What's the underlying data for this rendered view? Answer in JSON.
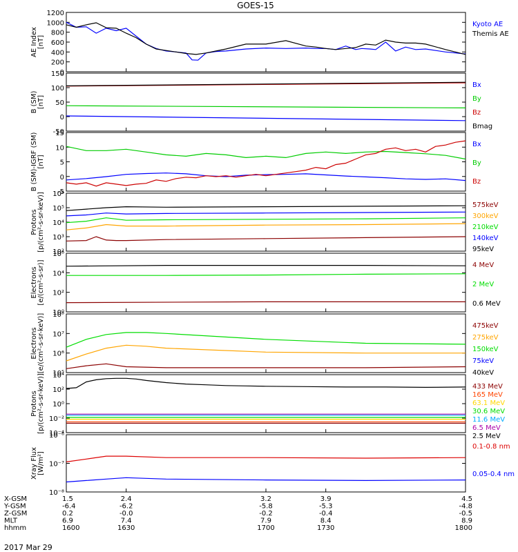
{
  "title": "GOES-15",
  "date_label": "2017 Mar 29",
  "chart_data": [
    {
      "id": "ae",
      "type": "line",
      "ylabel": [
        "AE Index",
        "[nT]"
      ],
      "scale": "linear",
      "ylim": [
        0,
        1200
      ],
      "yticks": [
        "0",
        "200",
        "400",
        "600",
        "800",
        "1000",
        "1200"
      ],
      "series": [
        {
          "name": "Kyoto AE",
          "color": "#0000ff",
          "x": [
            1600,
            1605,
            1610,
            1615,
            1620,
            1625,
            1630,
            1635,
            1640,
            1645,
            1650,
            1655,
            1660,
            1663,
            1666,
            1670,
            1675,
            1680,
            1690,
            1700,
            1710,
            1720,
            1725,
            1730,
            1735,
            1740,
            1745,
            1748,
            1752,
            1755,
            1760,
            1765,
            1770,
            1775,
            1780,
            1790,
            1800
          ],
          "y": [
            1000,
            900,
            910,
            780,
            880,
            830,
            880,
            720,
            560,
            470,
            420,
            400,
            380,
            240,
            235,
            380,
            410,
            420,
            460,
            480,
            470,
            480,
            470,
            470,
            450,
            520,
            450,
            470,
            460,
            450,
            600,
            420,
            500,
            450,
            460,
            400,
            360
          ]
        },
        {
          "name": "Themis AE",
          "color": "#000000",
          "x": [
            1600,
            1605,
            1610,
            1615,
            1620,
            1625,
            1630,
            1635,
            1640,
            1645,
            1650,
            1655,
            1660,
            1665,
            1670,
            1675,
            1680,
            1690,
            1700,
            1710,
            1720,
            1725,
            1730,
            1735,
            1740,
            1745,
            1750,
            1755,
            1760,
            1765,
            1770,
            1775,
            1780,
            1790,
            1800
          ],
          "y": [
            950,
            900,
            950,
            990,
            890,
            880,
            780,
            690,
            560,
            460,
            430,
            400,
            370,
            350,
            380,
            420,
            460,
            560,
            560,
            630,
            520,
            500,
            470,
            450,
            470,
            490,
            560,
            540,
            640,
            600,
            580,
            580,
            560,
            450,
            350
          ]
        }
      ]
    },
    {
      "id": "bsm",
      "type": "line",
      "ylabel": [
        "B (SM)",
        "[nT]"
      ],
      "scale": "linear",
      "ylim": [
        -60,
        150
      ],
      "yticks": [
        "-50",
        "0",
        "50",
        "100",
        "150"
      ],
      "series": [
        {
          "name": "Bx",
          "color": "#0000ff",
          "x": [
            1600,
            1800
          ],
          "y": [
            -5,
            -22
          ]
        },
        {
          "name": "By",
          "color": "#00cc00",
          "x": [
            1600,
            1800
          ],
          "y": [
            32,
            24
          ]
        },
        {
          "name": "Bz",
          "color": "#cc0000",
          "x": [
            1600,
            1800
          ],
          "y": [
            103,
            115
          ]
        },
        {
          "name": "Bmag",
          "color": "#000000",
          "x": [
            1600,
            1800
          ],
          "y": [
            104,
            117
          ]
        }
      ]
    },
    {
      "id": "bdiff",
      "type": "line",
      "ylabel": [
        "B (SM)-IGRF (SM)",
        "[nT]"
      ],
      "scale": "linear",
      "ylim": [
        -6,
        15
      ],
      "yticks": [
        "-5",
        "0",
        "5",
        "10",
        "15"
      ],
      "series": [
        {
          "name": "Bx",
          "color": "#0000ff",
          "x": [
            1600,
            1610,
            1620,
            1630,
            1640,
            1650,
            1660,
            1670,
            1680,
            1690,
            1700,
            1710,
            1720,
            1730,
            1740,
            1750,
            1760,
            1770,
            1780,
            1790,
            1800
          ],
          "y": [
            -2,
            -1.5,
            -0.8,
            0,
            0.3,
            0.5,
            0.2,
            -0.5,
            -0.8,
            -0.3,
            -0.1,
            0,
            0.2,
            -0.2,
            -0.6,
            -0.9,
            -1.2,
            -1.6,
            -1.8,
            -1.6,
            -2.2
          ]
        },
        {
          "name": "By",
          "color": "#00cc00",
          "x": [
            1600,
            1610,
            1620,
            1630,
            1640,
            1650,
            1660,
            1670,
            1680,
            1690,
            1700,
            1710,
            1720,
            1730,
            1740,
            1750,
            1760,
            1770,
            1780,
            1790,
            1800
          ],
          "y": [
            10,
            8.5,
            8.5,
            9,
            8,
            7,
            6.5,
            7.5,
            7,
            6,
            6.5,
            6,
            7.5,
            8,
            7.5,
            8,
            8.2,
            7.8,
            7.4,
            6.8,
            5.5
          ]
        },
        {
          "name": "Bz",
          "color": "#cc0000",
          "x": [
            1600,
            1605,
            1610,
            1615,
            1620,
            1625,
            1630,
            1635,
            1640,
            1645,
            1650,
            1655,
            1660,
            1665,
            1670,
            1675,
            1680,
            1685,
            1690,
            1695,
            1700,
            1705,
            1710,
            1715,
            1720,
            1725,
            1730,
            1735,
            1740,
            1745,
            1750,
            1755,
            1760,
            1765,
            1770,
            1775,
            1780,
            1785,
            1790,
            1795,
            1800
          ],
          "y": [
            -3,
            -3.5,
            -3,
            -4.2,
            -3,
            -3.5,
            -4,
            -3.5,
            -3.2,
            -2,
            -2.5,
            -1.5,
            -1,
            -1.2,
            -0.5,
            -0.8,
            -0.5,
            -1,
            -0.5,
            0,
            -0.5,
            0,
            0.5,
            1,
            1.5,
            2.5,
            2,
            3.5,
            4,
            5.5,
            7,
            7.5,
            9,
            9.5,
            8.5,
            9,
            8,
            10,
            10.5,
            11.5,
            12
          ]
        }
      ]
    },
    {
      "id": "protons1",
      "type": "line",
      "ylabel": [
        "Protons",
        "[p/(cm²-s-sr-keV)]"
      ],
      "scale": "log",
      "ylim": [
        1,
        7
      ],
      "yticks": [
        "10²",
        "10³",
        "10⁴",
        "10⁵",
        "10⁶"
      ],
      "series": [
        {
          "name": "575keV",
          "color": "#8b0000",
          "x": [
            1600,
            1610,
            1615,
            1620,
            1625,
            1630,
            1650,
            1700,
            1750,
            1800
          ],
          "y": [
            2.05,
            2.1,
            2.5,
            2.15,
            2.1,
            2.1,
            2.2,
            2.3,
            2.4,
            2.5
          ]
        },
        {
          "name": "300keV",
          "color": "#ffa500",
          "x": [
            1600,
            1610,
            1620,
            1630,
            1650,
            1700,
            1750,
            1800
          ],
          "y": [
            3.2,
            3.4,
            3.75,
            3.6,
            3.6,
            3.7,
            3.75,
            3.85
          ]
        },
        {
          "name": "210keV",
          "color": "#00dd00",
          "x": [
            1600,
            1610,
            1620,
            1630,
            1650,
            1700,
            1750,
            1800
          ],
          "y": [
            3.95,
            4.1,
            4.45,
            4.2,
            4.25,
            4.3,
            4.35,
            4.45
          ]
        },
        {
          "name": "140keV",
          "color": "#0000ff",
          "x": [
            1600,
            1610,
            1620,
            1630,
            1650,
            1700,
            1750,
            1800
          ],
          "y": [
            4.65,
            4.75,
            4.95,
            4.85,
            4.9,
            4.95,
            5,
            5.05
          ]
        },
        {
          "name": "95keV",
          "color": "#000000",
          "x": [
            1600,
            1610,
            1620,
            1630,
            1650,
            1700,
            1750,
            1800
          ],
          "y": [
            5.2,
            5.35,
            5.5,
            5.6,
            5.55,
            5.6,
            5.65,
            5.7
          ]
        }
      ]
    },
    {
      "id": "electrons1",
      "type": "line",
      "ylabel": [
        "Electrons",
        "[e/(cm²-s-sr)]"
      ],
      "scale": "log",
      "ylim": [
        0,
        7
      ],
      "yticks": [
        "10⁰",
        "10²",
        "10⁴",
        "10⁶"
      ],
      "series": [
        {
          "name": "4 MeV",
          "color": "#8b0000",
          "x": [
            1600,
            1700,
            1800
          ],
          "y": [
            1.1,
            1.2,
            1.2
          ]
        },
        {
          "name": "2 MeV",
          "color": "#00dd00",
          "x": [
            1600,
            1650,
            1700,
            1750,
            1800
          ],
          "y": [
            4.35,
            4.35,
            4.4,
            4.5,
            4.55
          ]
        },
        {
          "name": "0.6 MeV",
          "color": "#000000",
          "x": [
            1600,
            1650,
            1700,
            1750,
            1800
          ],
          "y": [
            5.45,
            5.55,
            5.55,
            5.55,
            5.5
          ]
        }
      ]
    },
    {
      "id": "electrons2",
      "type": "line",
      "ylabel": [
        "Electrons",
        "[e/(cm²-s-sr-keV)]"
      ],
      "scale": "log",
      "ylim": [
        5,
        8
      ],
      "yticks": [
        "10⁵",
        "10⁶",
        "10⁷",
        "10⁸"
      ],
      "series": [
        {
          "name": "475keV",
          "color": "#8b0000",
          "x": [
            1600,
            1610,
            1620,
            1630,
            1650,
            1700,
            1750,
            1800
          ],
          "y": [
            5.2,
            5.35,
            5.45,
            5.3,
            5.25,
            5.25,
            5.25,
            5.3
          ]
        },
        {
          "name": "275keV",
          "color": "#ffa500",
          "x": [
            1600,
            1610,
            1620,
            1630,
            1640,
            1650,
            1700,
            1750,
            1800
          ],
          "y": [
            5.6,
            5.95,
            6.25,
            6.4,
            6.35,
            6.25,
            6.05,
            6.0,
            6.0
          ]
        },
        {
          "name": "150keV",
          "color": "#00dd00",
          "x": [
            1600,
            1610,
            1620,
            1630,
            1640,
            1650,
            1700,
            1750,
            1800
          ],
          "y": [
            6.3,
            6.7,
            6.95,
            7.05,
            7.05,
            7.0,
            6.7,
            6.5,
            6.45
          ]
        },
        {
          "name": "75keV",
          "color": "#0000ff",
          "x": [],
          "y": []
        },
        {
          "name": "40keV",
          "color": "#000000",
          "x": [],
          "y": []
        }
      ]
    },
    {
      "id": "protons2",
      "type": "line",
      "ylabel": [
        "Protons",
        "[p/(cm²-s-sr-keV)]"
      ],
      "scale": "log",
      "ylim": [
        -4,
        4
      ],
      "yticks": [
        "10⁻⁴",
        "10⁻²",
        "10⁰",
        "10²",
        "10⁴"
      ],
      "series": [
        {
          "name": "433 MeV",
          "color": "#8b0000",
          "x": [
            1600,
            1800
          ],
          "y": [
            -2.7,
            -2.7
          ]
        },
        {
          "name": "165 MeV",
          "color": "#ff4400",
          "x": [
            1600,
            1800
          ],
          "y": [
            -2.5,
            -2.5
          ]
        },
        {
          "name": "63.1 MeV",
          "color": "#ffd700",
          "x": [
            1600,
            1800
          ],
          "y": [
            -2.15,
            -2.15
          ]
        },
        {
          "name": "30.6 MeV",
          "color": "#00dd00",
          "x": [
            1600,
            1800
          ],
          "y": [
            -1.9,
            -1.9
          ]
        },
        {
          "name": "11.6 MeV",
          "color": "#00aaff",
          "x": [
            1600,
            1800
          ],
          "y": [
            -1.6,
            -1.6
          ]
        },
        {
          "name": "6.5 MeV",
          "color": "#aa00aa",
          "x": [
            1600,
            1800
          ],
          "y": [
            -1.45,
            -1.45
          ]
        },
        {
          "name": "2.5 MeV",
          "color": "#000000",
          "x": [
            1600,
            1605,
            1610,
            1615,
            1620,
            1625,
            1630,
            1635,
            1640,
            1650,
            1660,
            1670,
            1680,
            1690,
            1700,
            1720,
            1740,
            1760,
            1780,
            1800
          ],
          "y": [
            2.1,
            2.2,
            3.0,
            3.3,
            3.45,
            3.5,
            3.5,
            3.4,
            3.2,
            2.9,
            2.7,
            2.6,
            2.5,
            2.45,
            2.4,
            2.35,
            2.3,
            2.3,
            2.25,
            2.3
          ]
        }
      ]
    },
    {
      "id": "xray",
      "type": "line",
      "ylabel": [
        "Xray Flux",
        "[W/m²]"
      ],
      "scale": "log",
      "ylim": [
        -8,
        -6
      ],
      "yticks": [
        "10⁻⁸",
        "10⁻⁷",
        "10⁻⁶"
      ],
      "series": [
        {
          "name": "0.1-0.8 nm",
          "color": "#dd0000",
          "x": [
            1600,
            1610,
            1620,
            1630,
            1650,
            1700,
            1750,
            1800
          ],
          "y": [
            -6.95,
            -6.85,
            -6.75,
            -6.75,
            -6.8,
            -6.8,
            -6.82,
            -6.8
          ]
        },
        {
          "name": "0.05-0.4 nm",
          "color": "#0000ff",
          "x": [
            1600,
            1610,
            1620,
            1630,
            1650,
            1700,
            1750,
            1800
          ],
          "y": [
            -7.65,
            -7.6,
            -7.55,
            -7.5,
            -7.55,
            -7.58,
            -7.6,
            -7.58
          ]
        }
      ]
    }
  ],
  "orbit_table": {
    "labels": [
      "X-GSM",
      "Y-GSM",
      "Z-GSM",
      "MLT",
      "hhmm"
    ],
    "ticks": [
      {
        "time": 1600,
        "values": [
          "1.5",
          "-6.4",
          "0.2",
          "6.9",
          "1600"
        ]
      },
      {
        "time": 1630,
        "values": [
          "2.4",
          "-6.2",
          "-0.0",
          "7.4",
          "1630"
        ]
      },
      {
        "time": 1700,
        "values": [
          "3.2",
          "-5.8",
          "-0.2",
          "7.9",
          "1700"
        ]
      },
      {
        "time": 1730,
        "values": [
          "3.9",
          "-5.3",
          "-0.4",
          "8.4",
          "1730"
        ]
      },
      {
        "time": 1800,
        "values": [
          "4.5",
          "-4.8",
          "-0.5",
          "8.9",
          "1800"
        ]
      }
    ]
  }
}
